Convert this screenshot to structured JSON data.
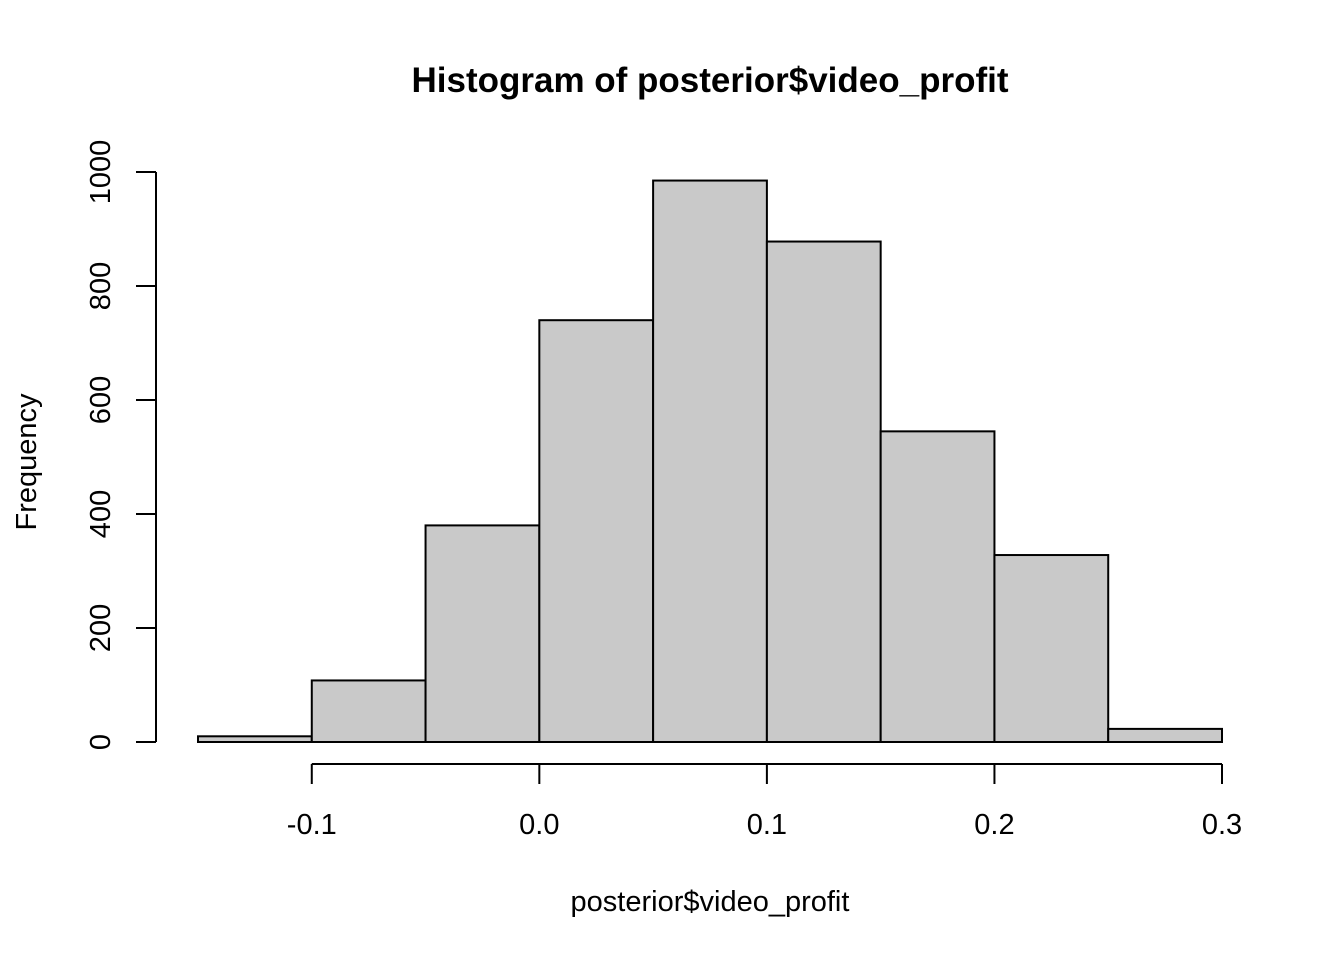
{
  "chart_data": {
    "type": "bar",
    "title": "Histogram of posterior$video_profit",
    "xlabel": "posterior$video_profit",
    "ylabel": "Frequency",
    "bin_edges": [
      -0.15,
      -0.1,
      -0.05,
      0.0,
      0.05,
      0.1,
      0.15,
      0.2,
      0.25,
      0.3
    ],
    "values": [
      10,
      108,
      380,
      740,
      985,
      878,
      545,
      328,
      23
    ],
    "xlim": [
      -0.15,
      0.3
    ],
    "ylim": [
      0,
      1000
    ],
    "x_ticks": [
      -0.1,
      0.0,
      0.1,
      0.2,
      0.3
    ],
    "x_tick_labels": [
      "-0.1",
      "0.0",
      "0.1",
      "0.2",
      "0.3"
    ],
    "y_ticks": [
      0,
      200,
      400,
      600,
      800,
      1000
    ],
    "y_tick_labels": [
      "0",
      "200",
      "400",
      "600",
      "800",
      "1000"
    ],
    "bar_color": "#c9c9c9",
    "grid": false
  }
}
